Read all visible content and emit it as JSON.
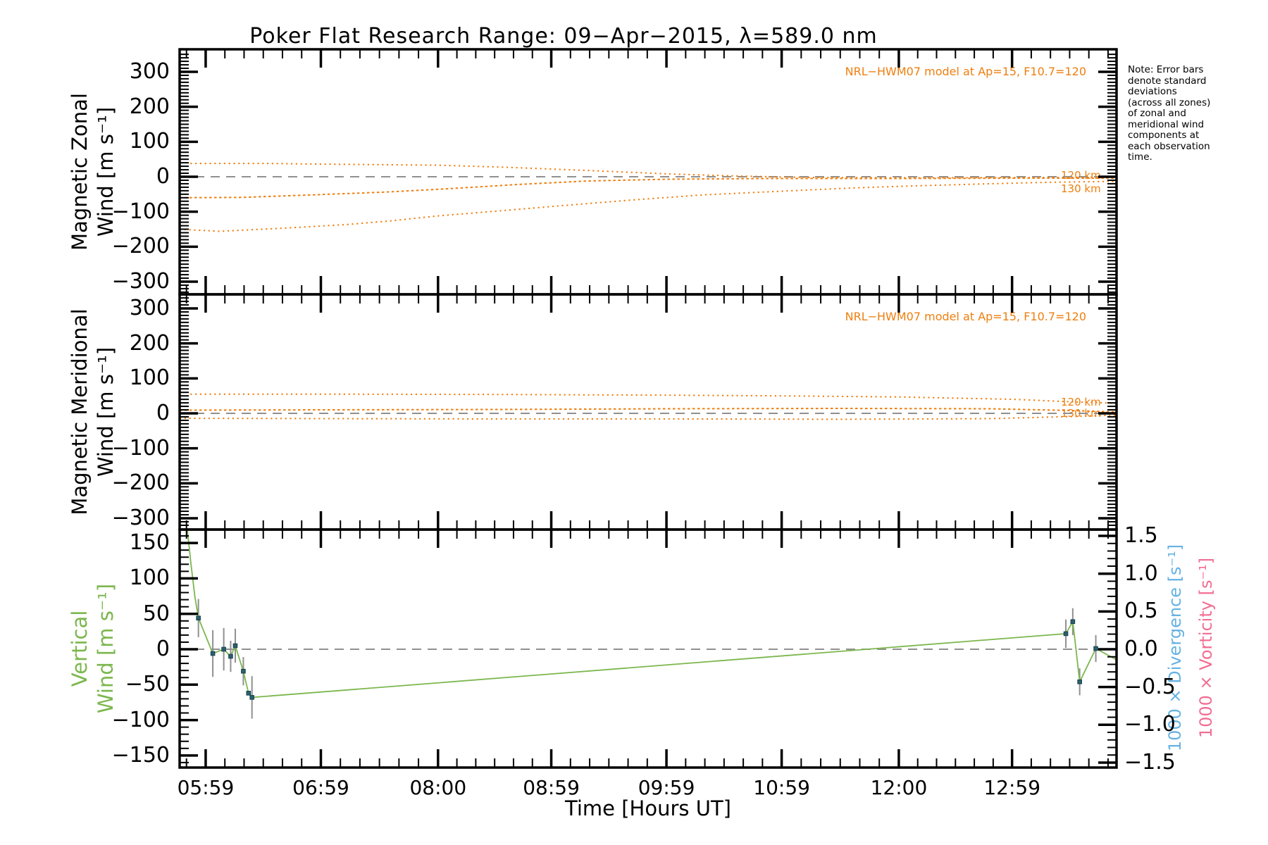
{
  "title": "Poker Flat Research Range: 09−Apr−2015, λ=589.0 nm",
  "note": "Note: Error bars\ndenote standard\ndeviations\n(across all zones)\nof zonal and\nmeridional wind\ncomponents at\neach observation\ntime.",
  "colors": {
    "orange": "#ee7f10",
    "green": "#7cb74e",
    "marker": "#2d5f6e",
    "marker_edge": "#16424e",
    "blue": "#66b2e2",
    "pink": "#f26e93",
    "gray": "#909090",
    "axis": "#000000",
    "background": "#ffffff"
  },
  "x_axis": {
    "label": "Time [Hours UT]",
    "range_hours": [
      5.757,
      13.89
    ],
    "ticks": [
      {
        "label": "05:59",
        "hour": 5.983
      },
      {
        "label": "06:59",
        "hour": 6.983
      },
      {
        "label": "08:00",
        "hour": 8.0
      },
      {
        "label": "08:59",
        "hour": 8.983
      },
      {
        "label": "09:59",
        "hour": 9.983
      },
      {
        "label": "10:59",
        "hour": 10.983
      },
      {
        "label": "12:00",
        "hour": 12.0
      },
      {
        "label": "12:59",
        "hour": 12.983
      }
    ]
  },
  "chart_data": [
    {
      "type": "line",
      "id": "magnetic-zonal-wind",
      "ylabel_lines": [
        "Magnetic Zonal",
        "Wind [m s⁻¹]"
      ],
      "ylabel_color": "#000000",
      "ylim": [
        -300,
        300
      ],
      "yticks": [
        300,
        200,
        100,
        0,
        -100,
        -200,
        -300
      ],
      "zero_line": true,
      "legend": "NRL−HWM07 model at Ap=15, F10.7=120",
      "series": [
        {
          "name": "hwm07-120km",
          "label": "120 km",
          "style": "dotted",
          "points": [
            [
              5.85,
              38
            ],
            [
              6.5,
              38
            ],
            [
              7.0,
              36
            ],
            [
              8.0,
              33
            ],
            [
              8.6,
              27
            ],
            [
              9.3,
              18
            ],
            [
              10.0,
              8
            ],
            [
              10.6,
              2
            ],
            [
              11.2,
              -2
            ],
            [
              12.2,
              -3
            ],
            [
              13.3,
              -2
            ],
            [
              13.88,
              -1
            ]
          ]
        },
        {
          "name": "hwm07-mid",
          "label": "",
          "style": "dashed",
          "points": [
            [
              5.757,
              -60
            ],
            [
              6.3,
              -59
            ],
            [
              6.9,
              -52
            ],
            [
              7.53,
              -44
            ],
            [
              8.1,
              -34
            ],
            [
              8.7,
              -22
            ],
            [
              9.3,
              -12
            ],
            [
              10.0,
              -7
            ],
            [
              10.9,
              -5
            ],
            [
              12.0,
              -5
            ],
            [
              13.0,
              -4
            ],
            [
              13.88,
              -4
            ]
          ]
        },
        {
          "name": "hwm07-130km",
          "label": "130 km",
          "style": "dotted",
          "points": [
            [
              5.757,
              -150
            ],
            [
              6.1,
              -156
            ],
            [
              6.6,
              -148
            ],
            [
              7.2,
              -137
            ],
            [
              7.56,
              -127
            ],
            [
              8.0,
              -112
            ],
            [
              8.48,
              -99
            ],
            [
              9.1,
              -82
            ],
            [
              9.7,
              -66
            ],
            [
              10.3,
              -52
            ],
            [
              10.93,
              -42
            ],
            [
              11.6,
              -32
            ],
            [
              12.15,
              -26
            ],
            [
              12.8,
              -20
            ],
            [
              13.3,
              -16
            ],
            [
              13.88,
              -13
            ]
          ]
        }
      ]
    },
    {
      "type": "line",
      "id": "magnetic-meridional-wind",
      "ylabel_lines": [
        "Magnetic Meridional",
        "Wind [m s⁻¹]"
      ],
      "ylabel_color": "#000000",
      "ylim": [
        -300,
        300
      ],
      "yticks": [
        300,
        200,
        100,
        0,
        -100,
        -200,
        -300
      ],
      "zero_line": true,
      "legend": "NRL−HWM07 model at Ap=15, F10.7=120",
      "series": [
        {
          "name": "hwm07-120km",
          "label": "120 km",
          "style": "dotted",
          "points": [
            [
              5.85,
              55
            ],
            [
              7.0,
              55
            ],
            [
              8.5,
              54
            ],
            [
              10.0,
              52
            ],
            [
              11.0,
              50
            ],
            [
              12.0,
              47
            ],
            [
              13.0,
              40
            ],
            [
              13.5,
              33
            ],
            [
              13.88,
              29
            ]
          ]
        },
        {
          "name": "hwm07-mid",
          "label": "",
          "style": "dashed",
          "points": [
            [
              5.757,
              9
            ],
            [
              7.0,
              10
            ],
            [
              8.5,
              11
            ],
            [
              10.0,
              13
            ],
            [
              11.5,
              14
            ],
            [
              12.8,
              13
            ],
            [
              13.5,
              8
            ],
            [
              13.88,
              4
            ]
          ]
        },
        {
          "name": "hwm07-130km",
          "label": "130 km",
          "style": "dotted",
          "points": [
            [
              5.757,
              -14
            ],
            [
              7.0,
              -15
            ],
            [
              8.5,
              -16
            ],
            [
              10.0,
              -16
            ],
            [
              11.5,
              -17
            ],
            [
              12.8,
              -15
            ],
            [
              13.5,
              -9
            ],
            [
              13.88,
              -5
            ]
          ]
        }
      ]
    },
    {
      "type": "line",
      "id": "vertical-wind",
      "ylabel_lines": [
        "Vertical",
        "Wind [m s⁻¹]"
      ],
      "ylabel_color": "#7cb74e",
      "ylim": [
        -150,
        150
      ],
      "yticks": [
        150,
        100,
        50,
        0,
        -50,
        -100,
        -150
      ],
      "zero_line": true,
      "right_axis": {
        "ylim": [
          -1.5,
          1.5
        ],
        "yticks": [
          1.5,
          1.0,
          0.5,
          0.0,
          -0.5,
          -1.0,
          -1.5
        ],
        "labels": [
          "1000 × Divergence [s⁻¹]",
          "1000 × Vorticity [s⁻¹]"
        ],
        "label_colors": [
          "#66b2e2",
          "#f26e93"
        ]
      },
      "series": [
        {
          "name": "vertical-wind-observed",
          "style": "solid",
          "has_markers": true,
          "points_hve": [
            [
              5.824,
              168,
              0,
              0
            ],
            [
              5.855,
              121,
              0,
              0
            ],
            [
              5.89,
              74,
              0,
              0
            ],
            [
              5.92,
              44,
              27,
              1
            ],
            [
              6.045,
              -6,
              33,
              1
            ],
            [
              6.14,
              0,
              30,
              1
            ],
            [
              6.2,
              -10,
              22,
              1
            ],
            [
              6.24,
              5,
              24,
              1
            ],
            [
              6.31,
              -31,
              20,
              1
            ],
            [
              6.355,
              -62,
              0,
              1
            ],
            [
              6.385,
              -68,
              30,
              1
            ],
            [
              13.45,
              22,
              20,
              1
            ],
            [
              13.51,
              39,
              19,
              1
            ],
            [
              13.57,
              -46,
              19,
              1
            ],
            [
              13.71,
              1,
              19,
              1
            ],
            [
              13.88,
              -14,
              0,
              0
            ]
          ]
        }
      ]
    }
  ]
}
